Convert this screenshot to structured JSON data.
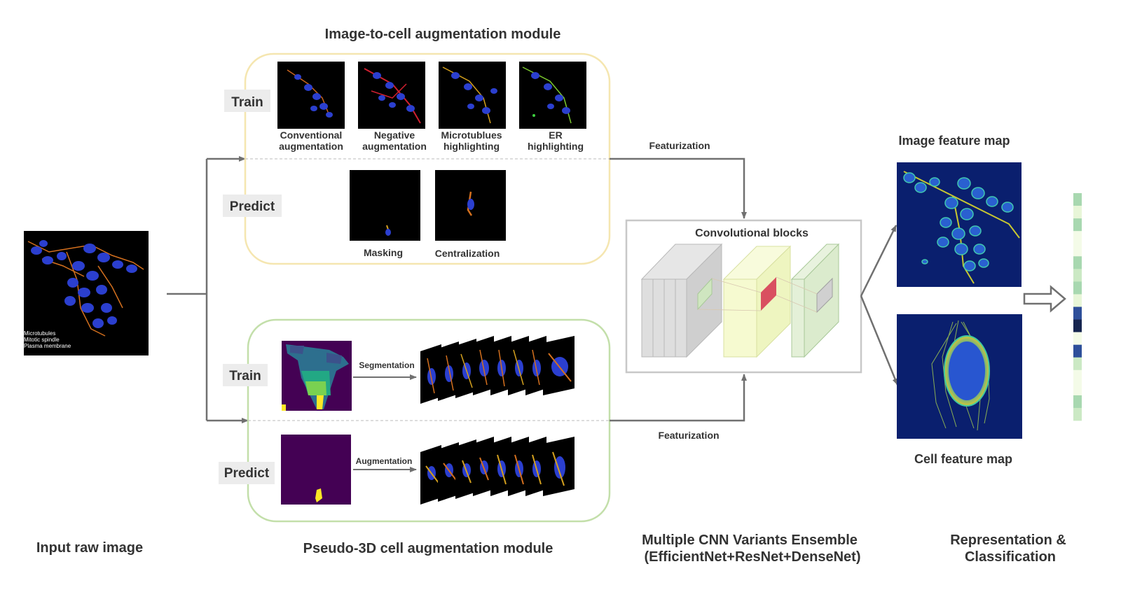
{
  "input": {
    "title": "Input raw image",
    "legend": [
      "Microtubules",
      "Mitotic spindle",
      "Plasma membrane"
    ]
  },
  "image_module": {
    "title": "Image-to-cell augmentation module",
    "train_label": "Train",
    "predict_label": "Predict",
    "train_items": [
      {
        "line1": "Conventional",
        "line2": "augmentation"
      },
      {
        "line1": "Negative",
        "line2": "augmentation"
      },
      {
        "line1": "Microtublues",
        "line2": "highlighting"
      },
      {
        "line1": "ER",
        "line2": "highlighting"
      }
    ],
    "predict_items": [
      "Masking",
      "Centralization"
    ]
  },
  "cell_module": {
    "title": "Pseudo-3D cell augmentation module",
    "train_label": "Train",
    "predict_label": "Predict",
    "train_arrow": "Segmentation",
    "predict_arrow": "Augmentation"
  },
  "featurization_top": "Featurization",
  "featurization_bottom": "Featurization",
  "cnn": {
    "box_title": "Convolutional blocks",
    "caption_line1": "Multiple CNN Variants Ensemble",
    "caption_line2": "(EfficientNet+ResNet+DenseNet)"
  },
  "feature_maps": {
    "image_title": "Image feature map",
    "cell_title": "Cell feature map"
  },
  "output": {
    "line1": "Representation &",
    "line2": "Classification",
    "vector_colors": [
      "#a8d8b0",
      "#e8f6d8",
      "#a8d8b0",
      "#f4fbe8",
      "#f4fbe8",
      "#a8d8b0",
      "#cbe9c4",
      "#a8d8b0",
      "#e8f6d8",
      "#2e4f9a",
      "#16254f",
      "#f4fbe8",
      "#2e4f9a",
      "#cbe9c4",
      "#f4fbe8",
      "#f4fbe8",
      "#a8d8b0",
      "#cbe9c4"
    ]
  },
  "colors": {
    "yellow_module_border": "#f5e6b0",
    "green_module_border": "#c3dfaa",
    "arrow": "#707070",
    "label_bg": "#ececec"
  }
}
